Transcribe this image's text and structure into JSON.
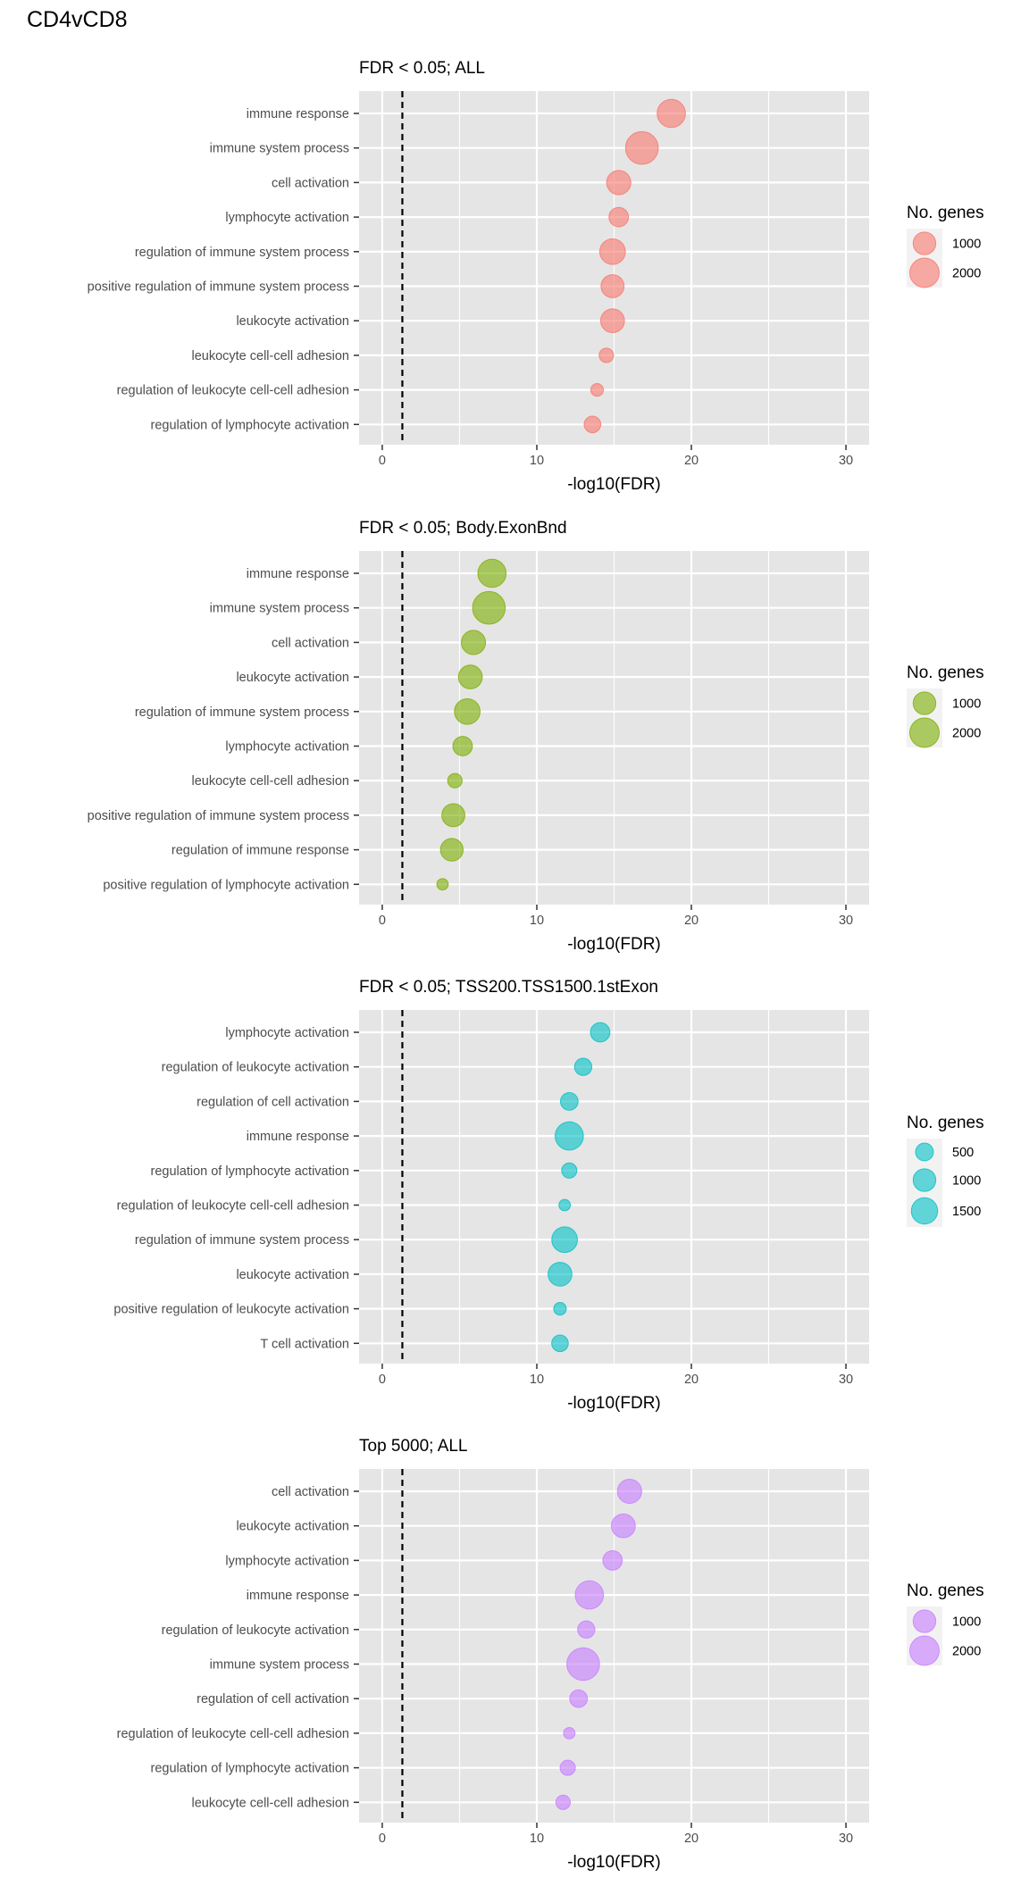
{
  "main_title": "CD4vCD8",
  "chart_data": [
    {
      "type": "scatter",
      "title": "FDR < 0.05; ALL",
      "xlabel": "-log10(FDR)",
      "ylabel": "",
      "xlim": [
        -1.5,
        31.5
      ],
      "x_ticks": [
        0,
        10,
        20,
        30
      ],
      "reference_line_x": 1.3,
      "reference_line_style": "dashed",
      "grid": true,
      "color": "#F8766D",
      "legend": {
        "title": "No. genes",
        "position": "right",
        "size_breaks": [
          1000,
          2000
        ],
        "size_labels": [
          "1000",
          "2000"
        ]
      },
      "categories": [
        "immune response",
        "immune system process",
        "cell activation",
        "lymphocyte activation",
        "regulation of immune system process",
        "positive regulation of immune system process",
        "leukocyte activation",
        "leukocyte cell-cell adhesion",
        "regulation of leukocyte cell-cell adhesion",
        "regulation of lymphocyte activation"
      ],
      "x": [
        18.7,
        16.8,
        15.3,
        15.3,
        14.9,
        14.9,
        14.9,
        14.5,
        13.9,
        13.6
      ],
      "genes": [
        1800,
        2600,
        1200,
        650,
        1400,
        1050,
        1150,
        250,
        150,
        400
      ]
    },
    {
      "type": "scatter",
      "title": "FDR < 0.05; Body.ExonBnd",
      "xlabel": "-log10(FDR)",
      "ylabel": "",
      "xlim": [
        -1.5,
        31.5
      ],
      "x_ticks": [
        0,
        10,
        20,
        30
      ],
      "reference_line_x": 1.3,
      "reference_line_style": "dashed",
      "grid": true,
      "color": "#7CAE00",
      "legend": {
        "title": "No. genes",
        "position": "right",
        "size_breaks": [
          1000,
          2000
        ],
        "size_labels": [
          "1000",
          "2000"
        ]
      },
      "categories": [
        "immune response",
        "immune system process",
        "cell activation",
        "leukocyte activation",
        "regulation of immune system process",
        "lymphocyte activation",
        "leukocyte cell-cell adhesion",
        "positive regulation of immune system process",
        "regulation of immune response",
        "positive regulation of lymphocyte activation"
      ],
      "x": [
        7.1,
        6.9,
        5.9,
        5.7,
        5.5,
        5.2,
        4.7,
        4.6,
        4.5,
        3.9
      ],
      "genes": [
        1800,
        2600,
        1200,
        1150,
        1400,
        650,
        250,
        1050,
        1000,
        100
      ]
    },
    {
      "type": "scatter",
      "title": "FDR < 0.05; TSS200.TSS1500.1stExon",
      "xlabel": "-log10(FDR)",
      "ylabel": "",
      "xlim": [
        -1.5,
        31.5
      ],
      "x_ticks": [
        0,
        10,
        20,
        30
      ],
      "reference_line_x": 1.3,
      "reference_line_style": "dashed",
      "grid": true,
      "color": "#00BFC4",
      "legend": {
        "title": "No. genes",
        "position": "right",
        "size_breaks": [
          500,
          1000,
          1500
        ],
        "size_labels": [
          "500",
          "1000",
          "1500"
        ]
      },
      "categories": [
        "lymphocyte activation",
        "regulation of leukocyte activation",
        "regulation of cell activation",
        "immune response",
        "regulation of lymphocyte activation",
        "regulation of leukocyte cell-cell adhesion",
        "regulation of immune system process",
        "leukocyte activation",
        "positive regulation of leukocyte activation",
        "T cell activation"
      ],
      "x": [
        14.1,
        13.0,
        12.1,
        12.1,
        12.1,
        11.8,
        11.8,
        11.5,
        11.5,
        11.5
      ],
      "genes": [
        650,
        450,
        480,
        1800,
        300,
        100,
        1400,
        1150,
        150,
        400
      ]
    },
    {
      "type": "scatter",
      "title": "Top 5000; ALL",
      "xlabel": "-log10(FDR)",
      "ylabel": "",
      "xlim": [
        -1.5,
        31.5
      ],
      "x_ticks": [
        0,
        10,
        20,
        30
      ],
      "reference_line_x": 1.3,
      "reference_line_style": "dashed",
      "grid": true,
      "color": "#C77CFF",
      "legend": {
        "title": "No. genes",
        "position": "right",
        "size_breaks": [
          1000,
          2000
        ],
        "size_labels": [
          "1000",
          "2000"
        ]
      },
      "categories": [
        "cell activation",
        "leukocyte activation",
        "lymphocyte activation",
        "immune response",
        "regulation of leukocyte activation",
        "immune system process",
        "regulation of cell activation",
        "regulation of leukocyte cell-cell adhesion",
        "regulation of lymphocyte activation",
        "leukocyte cell-cell adhesion"
      ],
      "x": [
        16.0,
        15.6,
        14.9,
        13.4,
        13.2,
        13.0,
        12.7,
        12.1,
        12.0,
        11.7
      ],
      "genes": [
        1200,
        1150,
        650,
        1800,
        450,
        2600,
        480,
        100,
        300,
        250
      ]
    }
  ]
}
